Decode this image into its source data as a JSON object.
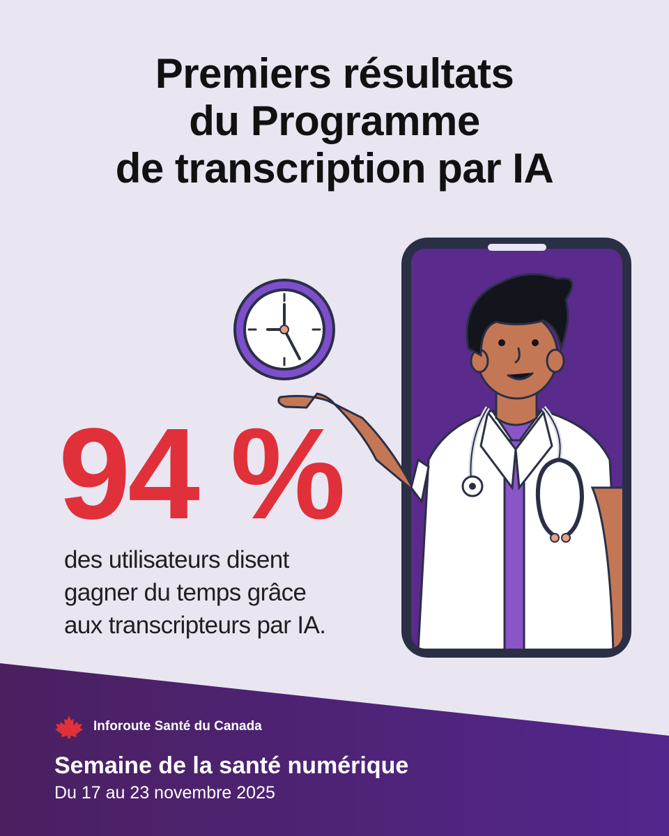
{
  "title": {
    "line1": "Premiers résultats",
    "line2": "du Programme",
    "line3": "de transcription par IA"
  },
  "stat": {
    "value": "94 %",
    "caption_line1": "des utilisateurs disent",
    "caption_line2": "gagner du temps grâce",
    "caption_line3": "aux transcripteurs par IA."
  },
  "footer": {
    "org_name": "Inforoute Santé du Canada",
    "event_title": "Semaine de la santé numérique",
    "event_dates": "Du 17 au 23 novembre 2025"
  },
  "icons": {
    "clock": "clock-icon",
    "logo": "maple-leaf-icon",
    "phone": "smartphone-illustration",
    "doctor": "doctor-illustration"
  },
  "colors": {
    "background": "#e9e6f2",
    "accent_red": "#e0303a",
    "purple": "#5a2a8c",
    "footer_gradient_start": "#4a2060",
    "footer_gradient_end": "#52268c"
  }
}
